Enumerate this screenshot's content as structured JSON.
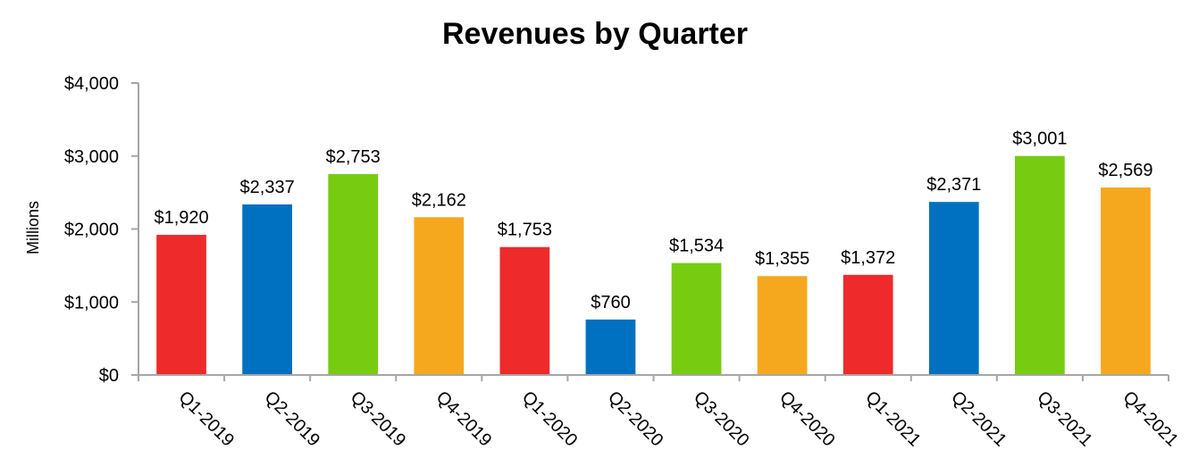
{
  "chart_data": {
    "type": "bar",
    "title": "Revenues by Quarter",
    "xlabel": "",
    "ylabel": "Millions",
    "categories": [
      "Q1-2019",
      "Q2-2019",
      "Q3-2019",
      "Q4-2019",
      "Q1-2020",
      "Q2-2020",
      "Q3-2020",
      "Q4-2020",
      "Q1-2021",
      "Q2-2021",
      "Q3-2021",
      "Q4-2021"
    ],
    "values": [
      1920,
      2337,
      2753,
      2162,
      1753,
      760,
      1534,
      1355,
      1372,
      2371,
      3001,
      2569
    ],
    "data_labels": [
      "$1,920",
      "$2,337",
      "$2,753",
      "$2,162",
      "$1,753",
      "$760",
      "$1,534",
      "$1,355",
      "$1,372",
      "$2,371",
      "$3,001",
      "$2,569"
    ],
    "ylim": [
      0,
      4000
    ],
    "yticks": [
      0,
      1000,
      2000,
      3000,
      4000
    ],
    "ytick_labels": [
      "$0",
      "$1,000",
      "$2,000",
      "$3,000",
      "$4,000"
    ],
    "grid": false,
    "legend": "none",
    "palette": [
      "#EE2A2A",
      "#0070C0",
      "#77CC11",
      "#F5A81E"
    ],
    "axis_color": "#A6A6A6"
  }
}
